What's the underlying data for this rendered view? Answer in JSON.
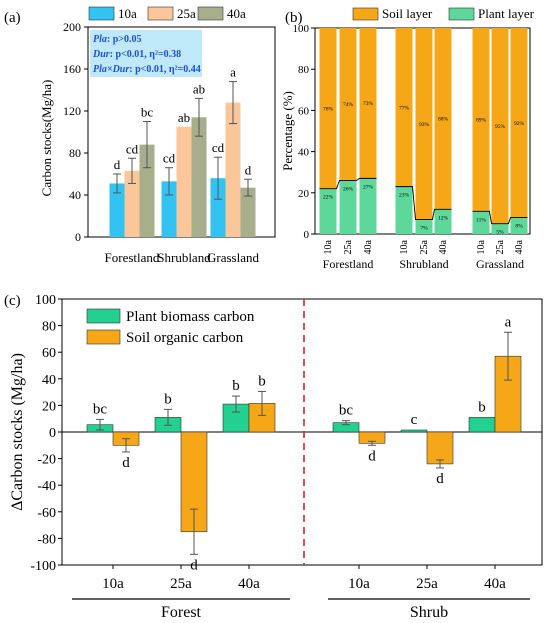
{
  "chart_data": [
    {
      "panel": "(a)",
      "type": "bar",
      "ylabel": "Carbon stocks(Mg/ha)",
      "ylim": [
        0,
        200
      ],
      "yticks": [
        0,
        40,
        80,
        120,
        160,
        200
      ],
      "categories": [
        "Forestland",
        "Shrubland",
        "Grassland"
      ],
      "series": [
        {
          "name": "10a",
          "color": "#33c3f3",
          "values": [
            51,
            53,
            56
          ],
          "errors": [
            9,
            13,
            20
          ],
          "letters": [
            "d",
            "cd",
            "cd"
          ]
        },
        {
          "name": "25a",
          "color": "#fbc79a",
          "values": [
            63,
            105,
            128
          ],
          "errors": [
            12,
            0,
            20
          ],
          "letters": [
            "cd",
            "ab",
            "a"
          ]
        },
        {
          "name": "40a",
          "color": "#a7ae8c",
          "values": [
            88,
            114,
            47
          ],
          "errors": [
            22,
            18,
            8
          ],
          "letters": [
            "bc",
            "ab",
            "d"
          ]
        }
      ],
      "stats": [
        {
          "term": "Pla",
          "text": ": p>0.05"
        },
        {
          "term": "Dur",
          "text": ": p<0.01, η²=0.38"
        },
        {
          "term": "Pla×Dur",
          "text": ": p<0.01, η²=0.44"
        }
      ]
    },
    {
      "panel": "(b)",
      "type": "bar",
      "stacked": true,
      "ylabel": "Percentage (%)",
      "ylim": [
        0,
        100
      ],
      "yticks": [
        0,
        20,
        40,
        60,
        80,
        100
      ],
      "groups": [
        "Forestland",
        "Shrubland",
        "Grassland"
      ],
      "categories": [
        "10a",
        "25a",
        "40a"
      ],
      "series": [
        {
          "name": "Soil layer",
          "color": "#f5a718",
          "values": [
            [
              78,
              74,
              73
            ],
            [
              77,
              93,
              88
            ],
            [
              89,
              95,
              92
            ]
          ]
        },
        {
          "name": "Plant layer",
          "color": "#5ed79b",
          "values": [
            [
              22,
              26,
              27
            ],
            [
              23,
              7,
              12
            ],
            [
              11,
              5,
              8
            ]
          ]
        }
      ],
      "value_labels": {
        "soil": [
          [
            "78%",
            "74%",
            "73%"
          ],
          [
            "77%",
            "93%",
            "88%"
          ],
          [
            "89%",
            "95%",
            "92%"
          ]
        ],
        "plant": [
          [
            "22%",
            "26%",
            "27%"
          ],
          [
            "23%",
            "7%",
            "12%"
          ],
          [
            "11%",
            "5%",
            "8%"
          ]
        ]
      }
    },
    {
      "panel": "(c)",
      "type": "bar",
      "ylabel": "ΔCarbon stocks (Mg/ha)",
      "ylim": [
        -100,
        100
      ],
      "yticks": [
        -100,
        -80,
        -60,
        -40,
        -20,
        0,
        20,
        40,
        60,
        80,
        100
      ],
      "groups": [
        "Forest",
        "Shrub"
      ],
      "categories": [
        "10a",
        "25a",
        "40a"
      ],
      "series": [
        {
          "name": "Plant biomass carbon",
          "color": "#22d08f",
          "values": [
            [
              5.5,
              11,
              21
            ],
            [
              7,
              1.5,
              11
            ]
          ],
          "errors": [
            [
              4,
              6,
              6
            ],
            [
              1.5,
              0,
              0
            ]
          ],
          "letters": [
            [
              "bc",
              "b",
              "b"
            ],
            [
              "bc",
              "c",
              "b"
            ]
          ]
        },
        {
          "name": "Soil organic carbon",
          "color": "#f5a718",
          "values": [
            [
              -10,
              -75,
              21.5
            ],
            [
              -8.5,
              -24,
              57
            ]
          ],
          "errors": [
            [
              5,
              17,
              9
            ],
            [
              1.5,
              3,
              18
            ]
          ],
          "letters": [
            [
              "d",
              "d",
              "b"
            ],
            [
              "d",
              "d",
              "a"
            ]
          ]
        }
      ]
    }
  ]
}
